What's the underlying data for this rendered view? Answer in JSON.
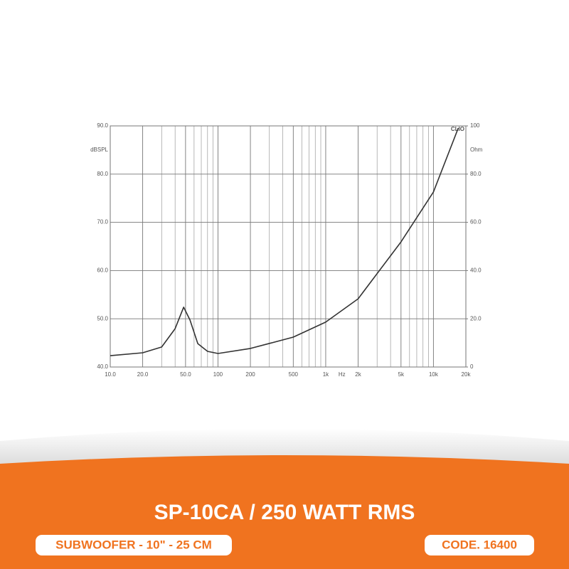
{
  "chart_data": {
    "type": "line",
    "annotation": "CLIO",
    "ylabel": "dBSPL",
    "y2label": "Ohm",
    "xlabel": "Hz",
    "xlog": true,
    "grid": true,
    "x": [
      10,
      20,
      30,
      40,
      48,
      55,
      65,
      80,
      100,
      200,
      500,
      1000,
      2000,
      5000,
      10000,
      17000
    ],
    "series": [
      {
        "color": "#333333",
        "axis": "y2",
        "values": [
          4.7,
          5.9,
          8.3,
          15.9,
          24.8,
          19.5,
          9.7,
          6.5,
          5.6,
          7.7,
          12.4,
          18.6,
          28.3,
          51.9,
          72.6,
          99.1
        ]
      }
    ],
    "xlim": [
      10,
      20000
    ],
    "xticks": [
      {
        "value": 10,
        "label": "10.0"
      },
      {
        "value": 20,
        "label": "20.0"
      },
      {
        "value": 50,
        "label": "50.0"
      },
      100,
      200,
      500,
      {
        "value": 1000,
        "label": "1k"
      },
      {
        "value": 2000,
        "label": "2k"
      },
      {
        "value": 5000,
        "label": "5k"
      },
      {
        "value": 10000,
        "label": "10k"
      },
      {
        "value": 20000,
        "label": "20k"
      }
    ],
    "xminorticks": [
      30,
      40,
      60,
      70,
      80,
      90,
      300,
      400,
      600,
      700,
      800,
      900,
      3000,
      4000,
      6000,
      7000,
      8000,
      9000
    ],
    "ylim": [
      40,
      90
    ],
    "yticks": [
      {
        "value": 40,
        "label": "40.0"
      },
      {
        "value": 50,
        "label": "50.0"
      },
      {
        "value": 60,
        "label": "60.0"
      },
      {
        "value": 70,
        "label": "70.0"
      },
      {
        "value": 80,
        "label": "80.0"
      },
      {
        "value": 90,
        "label": "90.0"
      }
    ],
    "y2lim": [
      0,
      100
    ],
    "y2ticks": [
      0,
      {
        "value": 20,
        "label": "20.0"
      },
      {
        "value": 40,
        "label": "40.0"
      },
      {
        "value": 60,
        "label": "60.0"
      },
      {
        "value": 80,
        "label": "80.0"
      },
      100
    ]
  },
  "banner": {
    "title": "SP-10CA / 250 WATT RMS",
    "subtitle": "SUBWOOFER - 10\" - 25 CM",
    "code": "CODE. 16400"
  }
}
